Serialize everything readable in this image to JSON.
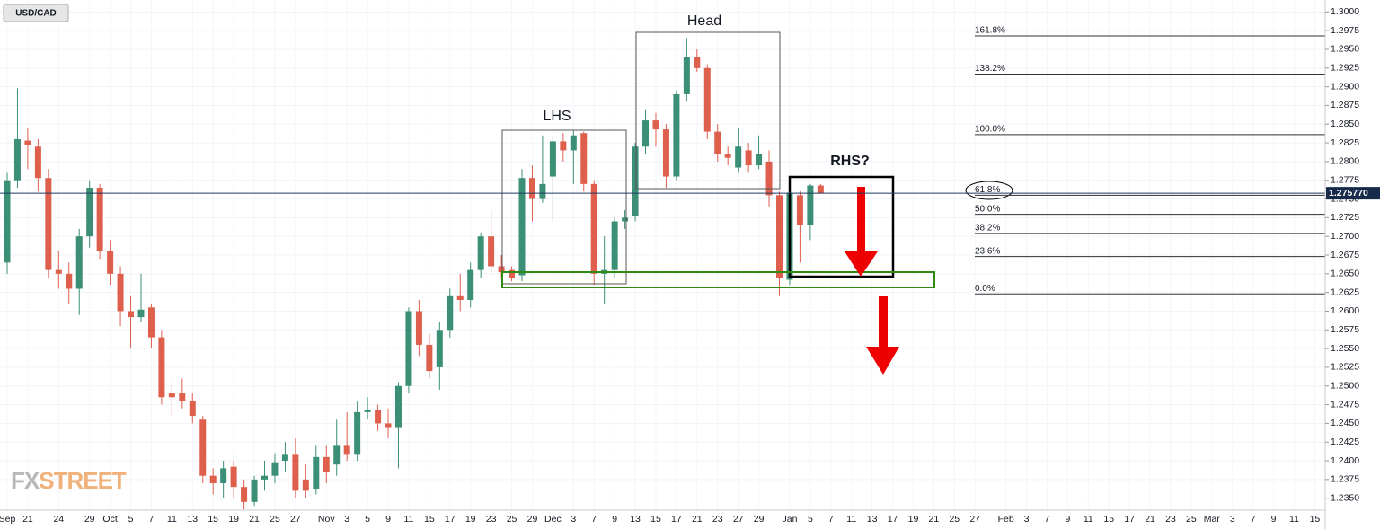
{
  "chart_data": {
    "type": "candlestick",
    "symbol": "USD/CAD",
    "brand": [
      "FX",
      "STREET"
    ],
    "annotations": [
      "Head",
      "LHS",
      "RHS?"
    ],
    "up_color": "#3b8f76",
    "down_color": "#df5f4d",
    "grid": true,
    "categories": [
      "Sep",
      null,
      "21",
      null,
      null,
      "24",
      null,
      null,
      "29",
      null,
      "Oct",
      null,
      "5",
      null,
      "7",
      null,
      "11",
      null,
      "13",
      null,
      "15",
      null,
      "19",
      null,
      "21",
      null,
      "25",
      null,
      "27",
      null,
      null,
      "Nov",
      null,
      "3",
      null,
      "5",
      null,
      "9",
      null,
      "11",
      null,
      "15",
      null,
      "17",
      null,
      "19",
      null,
      "23",
      null,
      "25",
      null,
      "29",
      null,
      "Dec",
      null,
      "3",
      null,
      "7",
      null,
      "9",
      null,
      "13",
      null,
      "15",
      null,
      "17",
      null,
      "21",
      null,
      "23",
      null,
      "27",
      null,
      "29",
      null,
      null,
      "Jan",
      null,
      "5",
      null,
      "7",
      null,
      "11",
      null,
      "13",
      null,
      "17",
      null,
      "19",
      null,
      "21",
      null,
      "25",
      null,
      "27",
      null,
      null,
      "Feb",
      null,
      "3",
      null,
      "7",
      null,
      "9",
      null,
      "11",
      null,
      "15",
      null,
      "17",
      null,
      "21",
      null,
      "23",
      null,
      "25",
      null,
      "Mar",
      null,
      "3",
      null,
      "7",
      null,
      "9",
      null,
      "11",
      null,
      "15"
    ],
    "open": [
      1.2665,
      1.2775,
      1.2828,
      1.282,
      1.2778,
      1.2655,
      1.265,
      1.263,
      1.27,
      1.2765,
      1.268,
      1.265,
      1.26,
      1.2592,
      1.2605,
      1.2565,
      1.249,
      1.249,
      1.248,
      1.2455,
      1.238,
      1.237,
      1.2392,
      1.2365,
      1.2345,
      1.2375,
      1.238,
      1.24,
      1.2408,
      1.2375,
      1.2362,
      1.2405,
      1.2395,
      1.242,
      1.2408,
      1.2465,
      1.2468,
      1.245,
      1.2445,
      1.25,
      1.26,
      1.2555,
      1.2525,
      1.2575,
      1.262,
      1.2615,
      1.2655,
      1.27,
      1.266,
      1.2655,
      1.2648,
      1.2778,
      1.275,
      1.278,
      1.2827,
      1.2815,
      1.2838,
      1.277,
      1.265,
      1.2655,
      1.272,
      1.2727,
      1.282,
      1.2855,
      1.2843,
      1.278,
      1.289,
      1.294,
      1.2925,
      1.284,
      1.281,
      1.2792,
      1.2815,
      1.2795,
      1.28,
      1.2755,
      1.2642,
      1.2755,
      1.2715,
      1.2768,
      null,
      null,
      null,
      null,
      null,
      null,
      null,
      null,
      null,
      null,
      null,
      null,
      null,
      null,
      null,
      null,
      null,
      null,
      null,
      null,
      null,
      null,
      null,
      null,
      null,
      null,
      null,
      null,
      null,
      null,
      null,
      null,
      null,
      null,
      null,
      null,
      null,
      null,
      null,
      null,
      null,
      null,
      null,
      null,
      null,
      null,
      null,
      null
    ],
    "high": [
      1.2785,
      1.2898,
      1.2845,
      1.283,
      1.279,
      1.268,
      1.2665,
      1.271,
      1.2775,
      1.277,
      1.2695,
      1.266,
      1.262,
      1.265,
      1.261,
      1.2575,
      1.2505,
      1.251,
      1.249,
      1.246,
      1.239,
      1.24,
      1.24,
      1.2375,
      1.238,
      1.24,
      1.241,
      1.2425,
      1.243,
      1.2395,
      1.242,
      1.242,
      1.2455,
      1.2465,
      1.248,
      1.2485,
      1.2475,
      1.247,
      1.2505,
      1.2605,
      1.2615,
      1.257,
      1.2585,
      1.263,
      1.265,
      1.2665,
      1.2705,
      1.2735,
      1.2675,
      1.266,
      1.279,
      1.2795,
      1.2835,
      1.2835,
      1.2838,
      1.2842,
      1.284,
      1.2775,
      1.27,
      1.2725,
      1.2735,
      1.2825,
      1.287,
      1.2865,
      1.285,
      1.2895,
      1.2965,
      1.295,
      1.293,
      1.285,
      1.282,
      1.2845,
      1.2825,
      1.2835,
      1.2815,
      1.276,
      1.276,
      1.276,
      1.277,
      1.277,
      null,
      null,
      null,
      null,
      null,
      null,
      null,
      null,
      null,
      null,
      null,
      null,
      null,
      null,
      null,
      null,
      null,
      null,
      null,
      null,
      null,
      null,
      null,
      null,
      null,
      null,
      null,
      null,
      null,
      null,
      null,
      null,
      null,
      null,
      null,
      null,
      null,
      null,
      null,
      null,
      null,
      null,
      null,
      null,
      null,
      null,
      null,
      null
    ],
    "low": [
      1.265,
      1.2765,
      1.279,
      1.276,
      1.2645,
      1.263,
      1.261,
      1.2595,
      1.2685,
      1.267,
      1.2635,
      1.258,
      1.255,
      1.2585,
      1.255,
      1.2475,
      1.246,
      1.247,
      1.245,
      1.237,
      1.2355,
      1.235,
      1.235,
      1.2335,
      1.234,
      1.236,
      1.237,
      1.2385,
      1.235,
      1.235,
      1.2355,
      1.237,
      1.238,
      1.24,
      1.24,
      1.2455,
      1.244,
      1.243,
      1.239,
      1.249,
      1.254,
      1.251,
      1.2495,
      1.2565,
      1.26,
      1.2605,
      1.2645,
      1.265,
      1.2645,
      1.264,
      1.264,
      1.272,
      1.2745,
      1.272,
      1.28,
      1.277,
      1.276,
      1.2635,
      1.261,
      1.2645,
      1.271,
      1.272,
      1.281,
      1.282,
      1.2765,
      1.2775,
      1.288,
      1.292,
      1.283,
      1.28,
      1.2795,
      1.2785,
      1.2785,
      1.279,
      1.274,
      1.262,
      1.2635,
      1.2665,
      1.2695,
      1.2758,
      null,
      null,
      null,
      null,
      null,
      null,
      null,
      null,
      null,
      null,
      null,
      null,
      null,
      null,
      null,
      null,
      null,
      null,
      null,
      null,
      null,
      null,
      null,
      null,
      null,
      null,
      null,
      null,
      null,
      null,
      null,
      null,
      null,
      null,
      null,
      null,
      null,
      null,
      null,
      null,
      null,
      null,
      null,
      null,
      null,
      null,
      null,
      null
    ],
    "close": [
      1.2775,
      1.283,
      1.2822,
      1.2778,
      1.2655,
      1.265,
      1.263,
      1.27,
      1.2765,
      1.268,
      1.265,
      1.26,
      1.2592,
      1.2602,
      1.2565,
      1.2485,
      1.2485,
      1.248,
      1.246,
      1.238,
      1.237,
      1.239,
      1.2365,
      1.2345,
      1.2375,
      1.238,
      1.2398,
      1.2408,
      1.236,
      1.236,
      1.2405,
      1.2385,
      1.242,
      1.2408,
      1.2465,
      1.2468,
      1.245,
      1.2445,
      1.25,
      1.26,
      1.2555,
      1.252,
      1.2575,
      1.262,
      1.2615,
      1.2655,
      1.27,
      1.266,
      1.2652,
      1.2645,
      1.2778,
      1.275,
      1.277,
      1.2827,
      1.2815,
      1.2835,
      1.277,
      1.265,
      1.2655,
      1.272,
      1.2725,
      1.282,
      1.2855,
      1.2843,
      1.278,
      1.289,
      1.294,
      1.2925,
      1.284,
      1.281,
      1.2805,
      1.282,
      1.2795,
      1.281,
      1.2755,
      1.2645,
      1.2758,
      1.2715,
      1.2768,
      1.27577,
      null,
      null,
      null,
      null,
      null,
      null,
      null,
      null,
      null,
      null,
      null,
      null,
      null,
      null,
      null,
      null,
      null,
      null,
      null,
      null,
      null,
      null,
      null,
      null,
      null,
      null,
      null,
      null,
      null,
      null,
      null,
      null,
      null,
      null,
      null,
      null,
      null,
      null,
      null,
      null,
      null,
      null,
      null,
      null,
      null,
      null,
      null,
      null
    ],
    "last_price": {
      "value": 1.27577,
      "label": "1.275770"
    },
    "fib_levels": [
      {
        "label": "161.8%",
        "price": 1.2968
      },
      {
        "label": "138.2%",
        "price": 1.2917
      },
      {
        "label": "100.0%",
        "price": 1.2836
      },
      {
        "label": "61.8%",
        "price": 1.2755
      },
      {
        "label": "50.0%",
        "price": 1.27295
      },
      {
        "label": "38.2%",
        "price": 1.2704
      },
      {
        "label": "23.6%",
        "price": 1.2673
      },
      {
        "label": "0.0%",
        "price": 1.2623
      }
    ],
    "ylim": [
      1.2334,
      1.3016
    ],
    "yticks": [
      {
        "value": 1.235,
        "label": "1.2350"
      },
      {
        "value": 1.2375,
        "label": "1.2375"
      },
      {
        "value": 1.24,
        "label": "1.2400"
      },
      {
        "value": 1.2425,
        "label": "1.2425"
      },
      {
        "value": 1.245,
        "label": "1.2450"
      },
      {
        "value": 1.2475,
        "label": "1.2475"
      },
      {
        "value": 1.25,
        "label": "1.2500"
      },
      {
        "value": 1.2525,
        "label": "1.2525"
      },
      {
        "value": 1.255,
        "label": "1.2550"
      },
      {
        "value": 1.2575,
        "label": "1.2575"
      },
      {
        "value": 1.26,
        "label": "1.2600"
      },
      {
        "value": 1.2625,
        "label": "1.2625"
      },
      {
        "value": 1.265,
        "label": "1.2650"
      },
      {
        "value": 1.2675,
        "label": "1.2675"
      },
      {
        "value": 1.27,
        "label": "1.2700"
      },
      {
        "value": 1.2725,
        "label": "1.2725"
      },
      {
        "value": 1.275,
        "label": "1.2750"
      },
      {
        "value": 1.2775,
        "label": "1.2775"
      },
      {
        "value": 1.28,
        "label": "1.2800"
      },
      {
        "value": 1.2825,
        "label": "1.2825"
      },
      {
        "value": 1.285,
        "label": "1.2850"
      },
      {
        "value": 1.2875,
        "label": "1.2875"
      },
      {
        "value": 1.29,
        "label": "1.2900"
      },
      {
        "value": 1.2925,
        "label": "1.2925"
      },
      {
        "value": 1.295,
        "label": "1.2950"
      },
      {
        "value": 1.2975,
        "label": "1.2975"
      },
      {
        "value": 1.3,
        "label": "1.3000"
      }
    ]
  }
}
